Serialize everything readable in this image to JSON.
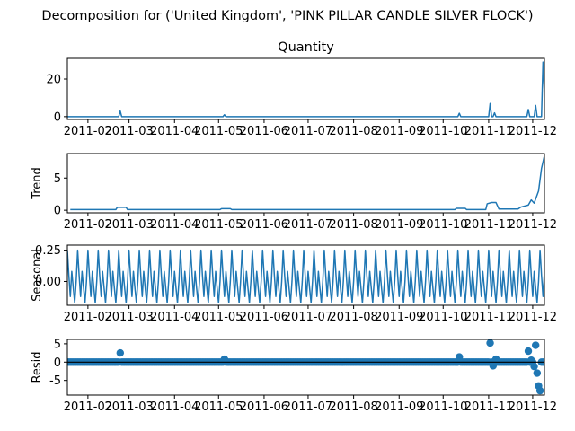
{
  "figure": {
    "suptitle": "Decomposition for ('United Kingdom', 'PINK PILLAR CANDLE SILVER FLOCK')"
  },
  "chart_data": [
    {
      "type": "line",
      "title": "Quantity",
      "ylabel": "",
      "ylim": [
        -1.5,
        31
      ],
      "yticks": [
        0,
        20
      ],
      "xticks": [
        "2011-02",
        "2011-03",
        "2011-04",
        "2011-05",
        "2011-06",
        "2011-07",
        "2011-08",
        "2011-09",
        "2011-10",
        "2011-11",
        "2011-12"
      ],
      "x_range": [
        "2011-01-18",
        "2011-12-09"
      ],
      "color": "#1f77b4",
      "baseline": 0,
      "spikes": [
        {
          "date": "2011-02-23",
          "value": 3
        },
        {
          "date": "2011-05-05",
          "value": 1
        },
        {
          "date": "2011-10-12",
          "value": 1.8
        },
        {
          "date": "2011-11-02",
          "value": 7
        },
        {
          "date": "2011-11-05",
          "value": 2
        },
        {
          "date": "2011-11-28",
          "value": 3.8
        },
        {
          "date": "2011-12-03",
          "value": 6
        },
        {
          "date": "2011-12-08",
          "value": 29
        },
        {
          "date": "2011-12-09",
          "value": 12
        }
      ]
    },
    {
      "type": "line",
      "title": "",
      "ylabel": "Trend",
      "ylim": [
        -0.4,
        8.8
      ],
      "yticks": [
        0,
        5
      ],
      "xticks": [
        "2011-02",
        "2011-03",
        "2011-04",
        "2011-05",
        "2011-06",
        "2011-07",
        "2011-08",
        "2011-09",
        "2011-10",
        "2011-11",
        "2011-12"
      ],
      "x_range": [
        "2011-01-18",
        "2011-12-09"
      ],
      "color": "#1f77b4",
      "points": [
        [
          "2011-01-20",
          0.1
        ],
        [
          "2011-02-20",
          0.1
        ],
        [
          "2011-02-21",
          0.45
        ],
        [
          "2011-02-27",
          0.45
        ],
        [
          "2011-02-28",
          0.1
        ],
        [
          "2011-05-02",
          0.1
        ],
        [
          "2011-05-03",
          0.25
        ],
        [
          "2011-05-09",
          0.25
        ],
        [
          "2011-05-10",
          0.1
        ],
        [
          "2011-10-09",
          0.1
        ],
        [
          "2011-10-10",
          0.3
        ],
        [
          "2011-10-16",
          0.3
        ],
        [
          "2011-10-17",
          0.1
        ],
        [
          "2011-10-30",
          0.1
        ],
        [
          "2011-10-31",
          1.0
        ],
        [
          "2011-11-03",
          1.2
        ],
        [
          "2011-11-06",
          1.2
        ],
        [
          "2011-11-08",
          0.2
        ],
        [
          "2011-11-21",
          0.2
        ],
        [
          "2011-11-23",
          0.5
        ],
        [
          "2011-11-28",
          0.8
        ],
        [
          "2011-11-30",
          1.6
        ],
        [
          "2011-12-02",
          1.1
        ],
        [
          "2011-12-05",
          3.0
        ],
        [
          "2011-12-07",
          6.5
        ],
        [
          "2011-12-09",
          8.5
        ]
      ]
    },
    {
      "type": "line",
      "title": "",
      "ylabel": "Seasonal",
      "ylim": [
        -0.19,
        0.29
      ],
      "yticks": [
        0.0,
        0.25
      ],
      "ytick_labels": [
        "0.00",
        "0.25"
      ],
      "xticks": [
        "2011-02",
        "2011-03",
        "2011-04",
        "2011-05",
        "2011-06",
        "2011-07",
        "2011-08",
        "2011-09",
        "2011-10",
        "2011-11",
        "2011-12"
      ],
      "x_range": [
        "2011-01-18",
        "2011-12-09"
      ],
      "color": "#1f77b4",
      "period_days": 7,
      "weekly_pattern": [
        0.25,
        0.05,
        -0.12,
        0.08,
        -0.05,
        -0.17,
        0.0
      ]
    },
    {
      "type": "scatter",
      "title": "",
      "ylabel": "Resid",
      "ylim": [
        -9,
        6.2
      ],
      "yticks": [
        -5,
        0,
        5
      ],
      "xticks": [
        "2011-02",
        "2011-03",
        "2011-04",
        "2011-05",
        "2011-06",
        "2011-07",
        "2011-08",
        "2011-09",
        "2011-10",
        "2011-11",
        "2011-12"
      ],
      "x_range": [
        "2011-01-18",
        "2011-12-09"
      ],
      "color": "#1f77b4",
      "baseline": 0,
      "outliers": [
        {
          "date": "2011-02-23",
          "value": 2.5
        },
        {
          "date": "2011-05-05",
          "value": 0.8
        },
        {
          "date": "2011-10-12",
          "value": 1.4
        },
        {
          "date": "2011-11-02",
          "value": 5.2
        },
        {
          "date": "2011-11-04",
          "value": -1.0
        },
        {
          "date": "2011-11-06",
          "value": 0.8
        },
        {
          "date": "2011-11-28",
          "value": 3.0
        },
        {
          "date": "2011-11-30",
          "value": 0.5
        },
        {
          "date": "2011-12-02",
          "value": -1.2
        },
        {
          "date": "2011-12-03",
          "value": 4.6
        },
        {
          "date": "2011-12-04",
          "value": -3.0
        },
        {
          "date": "2011-12-05",
          "value": -6.5
        },
        {
          "date": "2011-12-06",
          "value": -7.8
        }
      ]
    }
  ]
}
